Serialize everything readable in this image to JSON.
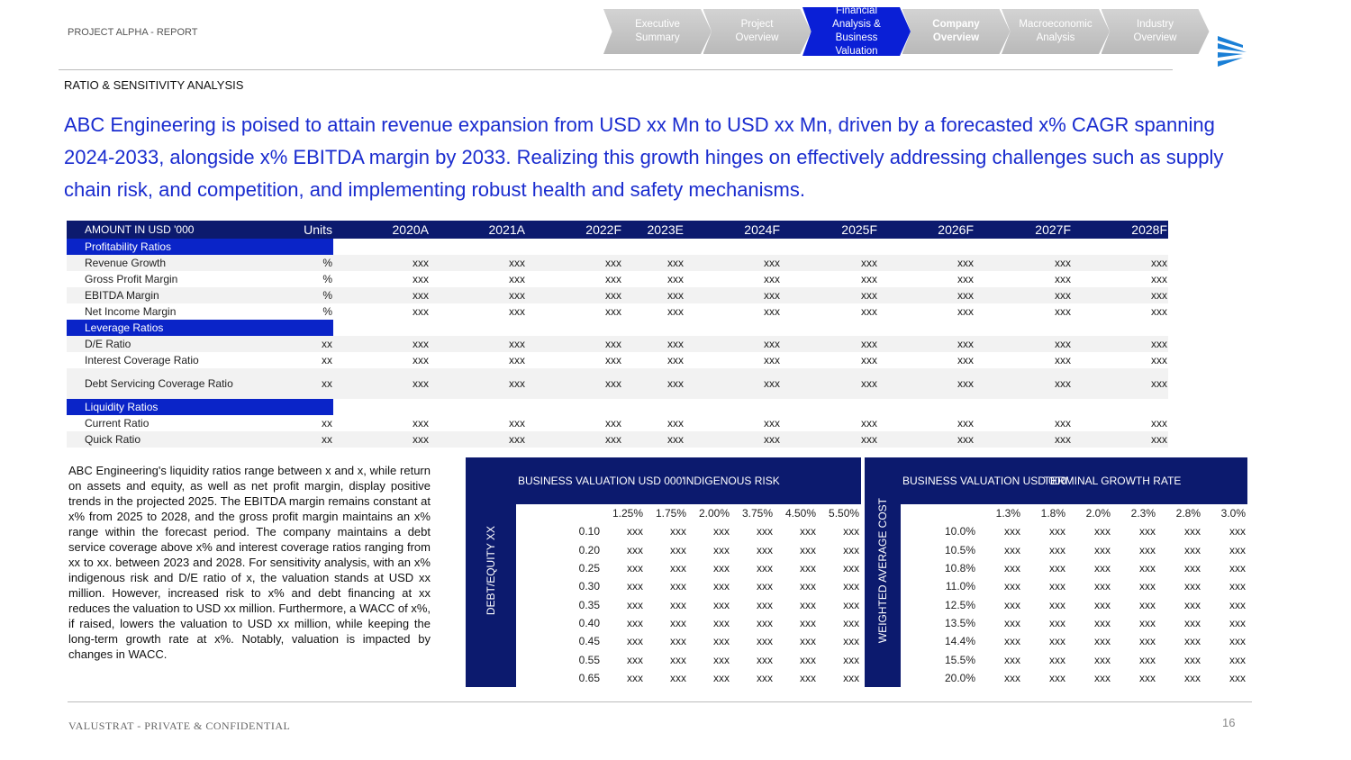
{
  "header": {
    "report_label": "PROJECT ALPHA - REPORT",
    "section_title": "RATIO & SENSITIVITY ANALYSIS",
    "headline": "ABC Engineering is poised to attain revenue expansion from USD xx Mn to USD xx Mn, driven by a forecasted x% CAGR spanning 2024-2033, alongside x% EBITDA margin by 2033. Realizing this growth hinges on effectively addressing challenges such as supply chain risk, and competition, and implementing robust health and safety mechanisms."
  },
  "nav": [
    {
      "label": "Executive Summary",
      "active": false,
      "bold": false
    },
    {
      "label": "Project Overview",
      "active": false,
      "bold": false
    },
    {
      "label": "Financial Analysis & Business Valuation",
      "active": true,
      "bold": false
    },
    {
      "label": "Company Overview",
      "active": false,
      "bold": true
    },
    {
      "label": "Macroeconomic Analysis",
      "active": false,
      "bold": false
    },
    {
      "label": "Industry Overview",
      "active": false,
      "bold": false
    }
  ],
  "ratio_table": {
    "columns": [
      "AMOUNT IN USD '000",
      "Units",
      "2020A",
      "2021A",
      "2022F",
      "2023E",
      "2024F",
      "2025F",
      "2026F",
      "2027F",
      "2028F"
    ],
    "sections": [
      {
        "title": "Profitability Ratios",
        "rows": [
          {
            "label": "Revenue Growth",
            "unit": "%",
            "values": [
              "xxx",
              "xxx",
              "xxx",
              "xxx",
              "xxx",
              "xxx",
              "xxx",
              "xxx",
              "xxx"
            ]
          },
          {
            "label": "Gross Profit Margin",
            "unit": "%",
            "values": [
              "xxx",
              "xxx",
              "xxx",
              "xxx",
              "xxx",
              "xxx",
              "xxx",
              "xxx",
              "xxx"
            ]
          },
          {
            "label": "EBITDA Margin",
            "unit": "%",
            "values": [
              "xxx",
              "xxx",
              "xxx",
              "xxx",
              "xxx",
              "xxx",
              "xxx",
              "xxx",
              "xxx"
            ]
          },
          {
            "label": "Net Income Margin",
            "unit": "%",
            "values": [
              "xxx",
              "xxx",
              "xxx",
              "xxx",
              "xxx",
              "xxx",
              "xxx",
              "xxx",
              "xxx"
            ]
          }
        ]
      },
      {
        "title": "Leverage Ratios",
        "rows": [
          {
            "label": "D/E Ratio",
            "unit": "xx",
            "values": [
              "xxx",
              "xxx",
              "xxx",
              "xxx",
              "xxx",
              "xxx",
              "xxx",
              "xxx",
              "xxx"
            ]
          },
          {
            "label": "Interest Coverage Ratio",
            "unit": "xx",
            "values": [
              "xxx",
              "xxx",
              "xxx",
              "xxx",
              "xxx",
              "xxx",
              "xxx",
              "xxx",
              "xxx"
            ]
          },
          {
            "label": "Debt Servicing Coverage Ratio",
            "unit": "xx",
            "values": [
              "xxx",
              "xxx",
              "xxx",
              "xxx",
              "xxx",
              "xxx",
              "xxx",
              "xxx",
              "xxx"
            ]
          }
        ]
      },
      {
        "title": "Liquidity Ratios",
        "rows": [
          {
            "label": "Current Ratio",
            "unit": "xx",
            "values": [
              "xxx",
              "xxx",
              "xxx",
              "xxx",
              "xxx",
              "xxx",
              "xxx",
              "xxx",
              "xxx"
            ]
          },
          {
            "label": "Quick Ratio",
            "unit": "xx",
            "values": [
              "xxx",
              "xxx",
              "xxx",
              "xxx",
              "xxx",
              "xxx",
              "xxx",
              "xxx",
              "xxx"
            ]
          }
        ]
      }
    ]
  },
  "commentary": "ABC Engineering's liquidity ratios range between x and x, while return on assets and equity, as well as net profit margin, display positive trends in the projected 2025. The EBITDA margin remains constant at x% from 2025 to 2028, and the gross profit margin maintains an x% range within the forecast period. The company maintains a debt service coverage above x% and interest coverage ratios ranging from xx to xx. between 2023 and 2028. For sensitivity analysis, with an x% indigenous risk and D/E ratio of x, the valuation stands at USD xx million. However, increased risk to x% and debt financing at xx reduces the valuation to USD xx million. Furthermore, a WACC of x%, if raised, lowers the valuation to USD xx million, while keeping the long-term growth rate at x%. Notably, valuation is impacted by changes in WACC.",
  "sensitivity_tables": [
    {
      "corner": "BUSINESS VALUATION USD 000'",
      "column_title": "INDIGENOUS RISK",
      "row_title": "DEBT/EQUITY XX",
      "columns": [
        "1.25%",
        "1.75%",
        "2.00%",
        "3.75%",
        "4.50%",
        "5.50%"
      ],
      "rows": [
        {
          "label": "0.10",
          "values": [
            "xxx",
            "xxx",
            "xxx",
            "xxx",
            "xxx",
            "xxx"
          ]
        },
        {
          "label": "0.20",
          "values": [
            "xxx",
            "xxx",
            "xxx",
            "xxx",
            "xxx",
            "xxx"
          ]
        },
        {
          "label": "0.25",
          "values": [
            "xxx",
            "xxx",
            "xxx",
            "xxx",
            "xxx",
            "xxx"
          ]
        },
        {
          "label": "0.30",
          "values": [
            "xxx",
            "xxx",
            "xxx",
            "xxx",
            "xxx",
            "xxx"
          ]
        },
        {
          "label": "0.35",
          "values": [
            "xxx",
            "xxx",
            "xxx",
            "xxx",
            "xxx",
            "xxx"
          ]
        },
        {
          "label": "0.40",
          "values": [
            "xxx",
            "xxx",
            "xxx",
            "xxx",
            "xxx",
            "xxx"
          ]
        },
        {
          "label": "0.45",
          "values": [
            "xxx",
            "xxx",
            "xxx",
            "xxx",
            "xxx",
            "xxx"
          ]
        },
        {
          "label": "0.55",
          "values": [
            "xxx",
            "xxx",
            "xxx",
            "xxx",
            "xxx",
            "xxx"
          ]
        },
        {
          "label": "0.65",
          "values": [
            "xxx",
            "xxx",
            "xxx",
            "xxx",
            "xxx",
            "xxx"
          ]
        }
      ]
    },
    {
      "corner": "BUSINESS VALUATION USD 000'",
      "column_title": "TERMINAL GROWTH RATE",
      "row_title": "WEIGHTED AVERAGE COST",
      "columns": [
        "1.3%",
        "1.8%",
        "2.0%",
        "2.3%",
        "2.8%",
        "3.0%"
      ],
      "rows": [
        {
          "label": "10.0%",
          "values": [
            "xxx",
            "xxx",
            "xxx",
            "xxx",
            "xxx",
            "xxx"
          ]
        },
        {
          "label": "10.5%",
          "values": [
            "xxx",
            "xxx",
            "xxx",
            "xxx",
            "xxx",
            "xxx"
          ]
        },
        {
          "label": "10.8%",
          "values": [
            "xxx",
            "xxx",
            "xxx",
            "xxx",
            "xxx",
            "xxx"
          ]
        },
        {
          "label": "11.0%",
          "values": [
            "xxx",
            "xxx",
            "xxx",
            "xxx",
            "xxx",
            "xxx"
          ]
        },
        {
          "label": "12.5%",
          "values": [
            "xxx",
            "xxx",
            "xxx",
            "xxx",
            "xxx",
            "xxx"
          ]
        },
        {
          "label": "13.5%",
          "values": [
            "xxx",
            "xxx",
            "xxx",
            "xxx",
            "xxx",
            "xxx"
          ]
        },
        {
          "label": "14.4%",
          "values": [
            "xxx",
            "xxx",
            "xxx",
            "xxx",
            "xxx",
            "xxx"
          ]
        },
        {
          "label": "15.5%",
          "values": [
            "xxx",
            "xxx",
            "xxx",
            "xxx",
            "xxx",
            "xxx"
          ]
        },
        {
          "label": "20.0%",
          "values": [
            "xxx",
            "xxx",
            "xxx",
            "xxx",
            "xxx",
            "xxx"
          ]
        }
      ]
    }
  ],
  "footer": {
    "confidentiality": "VALUSTRAT - PRIVATE & CONFIDENTIAL",
    "page_number": "16"
  }
}
